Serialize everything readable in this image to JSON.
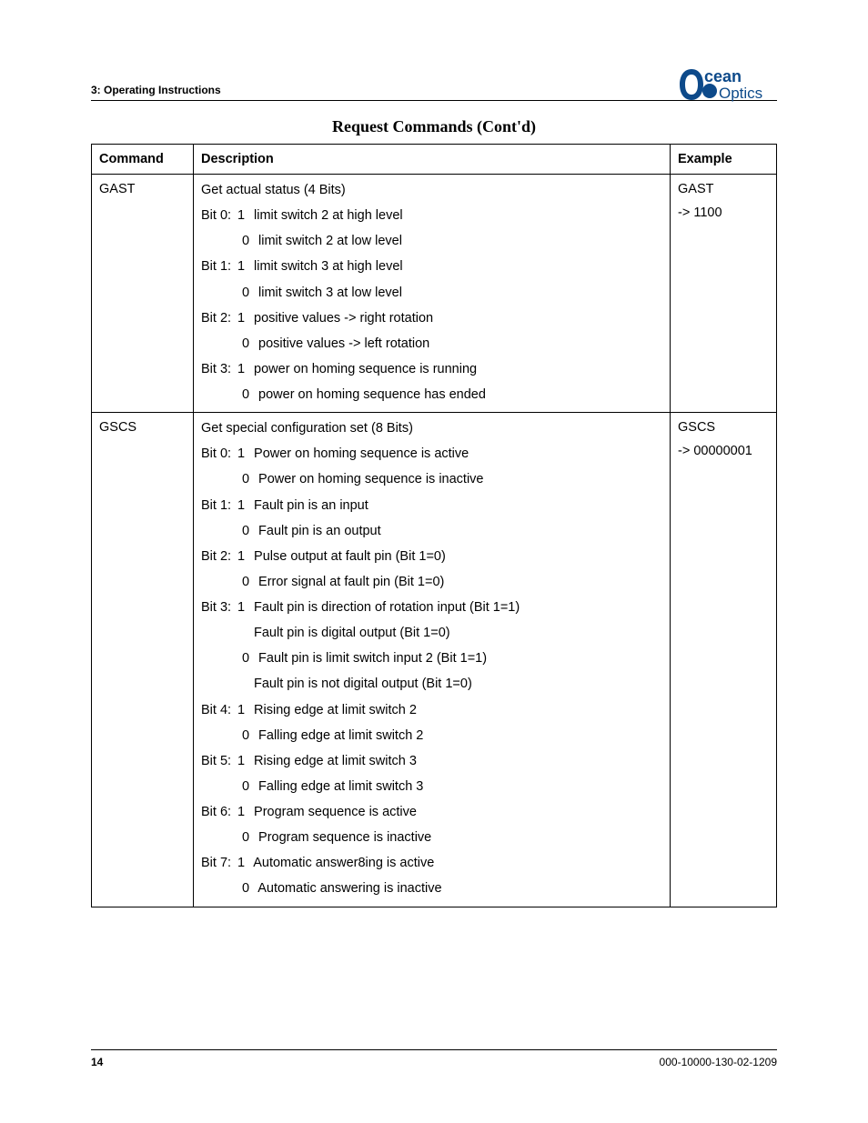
{
  "header": {
    "section": "3: Operating Instructions",
    "logo_text_top": "cean",
    "logo_text_bottom": "Optics",
    "logo_color_blue": "#0d4a8a",
    "logo_color_text": "#0d4a8a"
  },
  "title": "Request Commands (Cont'd)",
  "headers": {
    "command": "Command",
    "description": "Description",
    "example": "Example"
  },
  "rows": [
    {
      "command": "GAST",
      "example_lines": [
        "GAST",
        "-> 1100"
      ],
      "desc": [
        {
          "text": "Get actual status (4 Bits)"
        },
        {
          "bit": "Bit 0:",
          "val": "1",
          "text": "limit switch 2 at high level"
        },
        {
          "indent": true,
          "val": "0",
          "text": "limit switch 2 at low level"
        },
        {
          "bit": "Bit 1:",
          "val": "1",
          "text": "limit switch 3 at high level"
        },
        {
          "indent": true,
          "val": "0",
          "text": "limit switch 3 at low level"
        },
        {
          "bit": "Bit 2:",
          "val": "1",
          "text": "positive values -> right rotation"
        },
        {
          "indent": true,
          "val": "0",
          "text": "positive values -> left rotation"
        },
        {
          "bit": "Bit 3:",
          "val": "1",
          "text": "power on homing sequence is running"
        },
        {
          "indent": true,
          "val": "0",
          "text": "power on homing sequence has ended"
        }
      ]
    },
    {
      "command": "GSCS",
      "example_lines": [
        "GSCS",
        "-> 00000001"
      ],
      "desc": [
        {
          "text": "Get special configuration set (8 Bits)"
        },
        {
          "bit": "Bit 0:",
          "val": "1",
          "text": "Power on homing sequence is active"
        },
        {
          "indent": true,
          "val": "0",
          "text": "Power on homing sequence is inactive"
        },
        {
          "bit": "Bit 1:",
          "val": "1",
          "text": "Fault pin is an input"
        },
        {
          "indent": true,
          "val": "0",
          "text": "Fault pin is an output"
        },
        {
          "bit": "Bit 2:",
          "val": "1",
          "text": "Pulse output at fault pin (Bit 1=0)"
        },
        {
          "indent": true,
          "val": "0",
          "text": "Error signal at fault pin (Bit 1=0)"
        },
        {
          "bit": "Bit 3:",
          "val": "1",
          "text": "Fault pin is direction of rotation input (Bit 1=1)"
        },
        {
          "indent_more": true,
          "text": "Fault pin is digital output (Bit 1=0)"
        },
        {
          "indent": true,
          "val": "0",
          "text": "Fault pin is limit switch input 2 (Bit 1=1)"
        },
        {
          "indent_more": true,
          "text": "Fault pin is not digital output (Bit 1=0)"
        },
        {
          "bit": "Bit 4:",
          "val": "1",
          "text": "Rising edge at limit switch 2"
        },
        {
          "indent": true,
          "val": "0",
          "text": "Falling edge at limit switch 2"
        },
        {
          "bit": "Bit 5:",
          "val": "1",
          "text": "Rising edge at limit switch 3"
        },
        {
          "indent": true,
          "val": "0",
          "text": "Falling edge at limit switch 3"
        },
        {
          "bit": "Bit 6:",
          "val": "1",
          "text": "Program sequence is active"
        },
        {
          "indent": true,
          "val": "0",
          "text": "Program sequence is inactive"
        },
        {
          "bit": "Bit 7:",
          "val": "1",
          "text": "Automatic answer8ing is active"
        },
        {
          "indent": true,
          "val": "0",
          "text": "Automatic answering is inactive"
        }
      ]
    }
  ],
  "footer": {
    "page": "14",
    "docnum": "000-10000-130-02-1209"
  }
}
